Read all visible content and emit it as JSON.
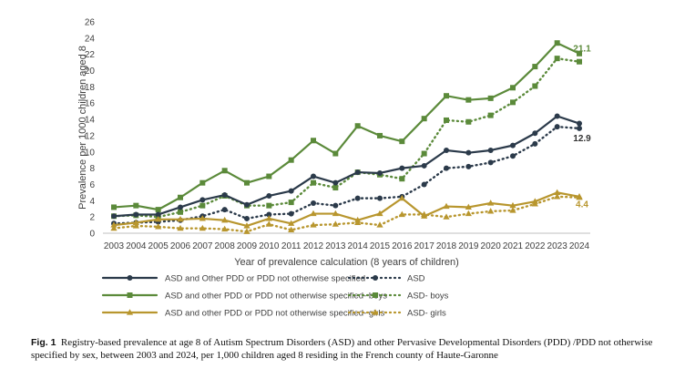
{
  "chart_data": {
    "type": "line",
    "ylabel": "Prevalence per 1000 children aged 8",
    "xlabel": "Year of prevalence calculation (8 years of children)",
    "ylim": [
      0,
      26
    ],
    "yticks": [
      0,
      2,
      4,
      6,
      8,
      10,
      12,
      14,
      16,
      18,
      20,
      22,
      24,
      26
    ],
    "x": [
      "2003",
      "2004",
      "2005",
      "2006",
      "2007",
      "2008",
      "2009",
      "2010",
      "2011",
      "2012",
      "2013",
      "2014",
      "2015",
      "2016",
      "2017",
      "2018",
      "2019",
      "2020",
      "2021",
      "2022",
      "2023",
      "2024"
    ],
    "grid": false,
    "legend_position": "bottom",
    "series": [
      {
        "name": "ASD and Other PDD or PDD not otherwise specified",
        "color": "#2b3a4a",
        "style": "solid",
        "marker": "circle",
        "values": [
          2.1,
          2.3,
          2.3,
          3.2,
          4.1,
          4.7,
          3.5,
          4.6,
          5.2,
          7.0,
          6.2,
          7.5,
          7.4,
          8.0,
          8.3,
          10.2,
          9.9,
          10.2,
          10.8,
          12.3,
          14.4,
          13.5
        ]
      },
      {
        "name": "ASD",
        "color": "#2b3a4a",
        "style": "dotted",
        "marker": "circle",
        "values": [
          1.2,
          1.3,
          1.4,
          1.6,
          2.1,
          2.9,
          1.8,
          2.3,
          2.4,
          3.7,
          3.4,
          4.3,
          4.3,
          4.5,
          6.0,
          8.0,
          8.2,
          8.7,
          9.5,
          11.0,
          13.1,
          12.9
        ]
      },
      {
        "name": "ASD and other PDD or PDD not otherwise specified- boys",
        "color": "#5b8a3a",
        "style": "solid",
        "marker": "square",
        "values": [
          3.2,
          3.4,
          2.9,
          4.4,
          6.2,
          7.7,
          6.2,
          7.0,
          9.0,
          11.4,
          9.8,
          13.2,
          12.0,
          11.3,
          14.1,
          16.9,
          16.4,
          16.6,
          17.9,
          20.5,
          23.4,
          22.1
        ]
      },
      {
        "name": "ASD- boys",
        "color": "#5b8a3a",
        "style": "dotted",
        "marker": "square",
        "values": [
          2.1,
          2.2,
          2.0,
          2.6,
          3.4,
          4.6,
          3.4,
          3.4,
          3.8,
          6.2,
          5.6,
          7.5,
          7.2,
          6.7,
          9.8,
          13.9,
          13.7,
          14.5,
          16.1,
          18.1,
          21.5,
          21.1
        ]
      },
      {
        "name": "ASD and other PDD or PDD not otherwise specified- girls",
        "color": "#b8962e",
        "style": "solid",
        "marker": "triangle",
        "values": [
          1.0,
          1.3,
          1.7,
          1.7,
          1.8,
          1.6,
          0.9,
          1.8,
          1.2,
          2.4,
          2.4,
          1.6,
          2.4,
          4.3,
          2.1,
          3.3,
          3.2,
          3.7,
          3.4,
          3.9,
          5.0,
          4.5
        ]
      },
      {
        "name": "ASD- girls",
        "color": "#b8962e",
        "style": "dotted",
        "marker": "triangle",
        "values": [
          0.6,
          0.9,
          0.8,
          0.6,
          0.6,
          0.5,
          0.2,
          1.1,
          0.4,
          1.0,
          1.1,
          1.3,
          1.0,
          2.3,
          2.3,
          2.0,
          2.4,
          2.7,
          2.8,
          3.6,
          4.5,
          4.4
        ]
      }
    ],
    "annotations": [
      {
        "text": "21.1",
        "series": 3,
        "x": "2024",
        "y": 21.1
      },
      {
        "text": "12.9",
        "series": 1,
        "x": "2024",
        "y": 12.9
      },
      {
        "text": "4.4",
        "series": 5,
        "x": "2024",
        "y": 4.4
      }
    ]
  },
  "caption": {
    "label": "Fig. 1",
    "text": "Registry-based prevalence at age 8 of Autism Spectrum Disorders (ASD) and other Pervasive Developmental Disorders (PDD) /PDD not otherwise specified by sex, between 2003 and 2024, per 1,000 children aged 8 residing in the French county of Haute-Garonne"
  }
}
